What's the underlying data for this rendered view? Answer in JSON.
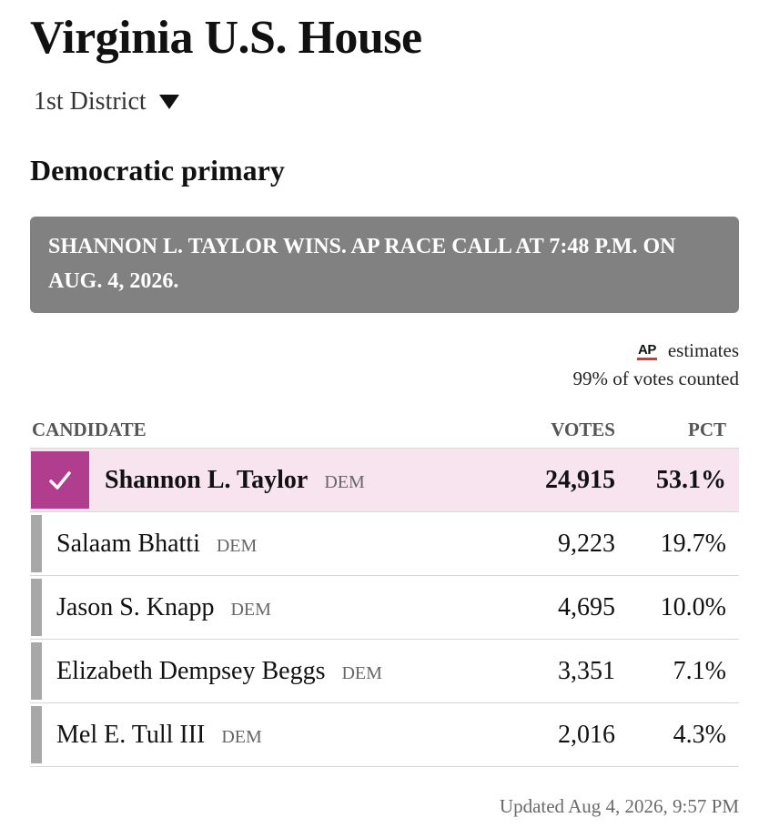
{
  "header": {
    "title": "Virginia U.S. House",
    "district_selected": "1st District",
    "district_caret_icon": "caret-down-icon",
    "race": "Democratic primary"
  },
  "banner": {
    "text": "SHANNON L. TAYLOR WINS. AP RACE CALL AT 7:48 P.M. ON AUG. 4, 2026."
  },
  "estimates": {
    "logo_text": "AP",
    "estimates_label": "estimates",
    "votes_counted": "99% of votes counted"
  },
  "table": {
    "columns": {
      "candidate": "CANDIDATE",
      "votes": "VOTES",
      "pct": "PCT"
    },
    "rows": [
      {
        "name": "Shannon L. Taylor",
        "party": "DEM",
        "votes": "24,915",
        "pct": "53.1%",
        "winner": true,
        "winner_icon": "checkmark-icon"
      },
      {
        "name": "Salaam Bhatti",
        "party": "DEM",
        "votes": "9,223",
        "pct": "19.7%"
      },
      {
        "name": "Jason S. Knapp",
        "party": "DEM",
        "votes": "4,695",
        "pct": "10.0%"
      },
      {
        "name": "Elizabeth Dempsey Beggs",
        "party": "DEM",
        "votes": "3,351",
        "pct": "7.1%"
      },
      {
        "name": "Mel E. Tull III",
        "party": "DEM",
        "votes": "2,016",
        "pct": "4.3%"
      }
    ]
  },
  "footer": {
    "updated": "Updated Aug 4, 2026, 9:57 PM"
  },
  "colors": {
    "winner_accent": "#b03d8d",
    "winner_row_bg": "#f7e4ef",
    "banner_bg": "#818181",
    "candidate_bar": "#a8a8a8",
    "ap_underline": "#e1332f"
  }
}
